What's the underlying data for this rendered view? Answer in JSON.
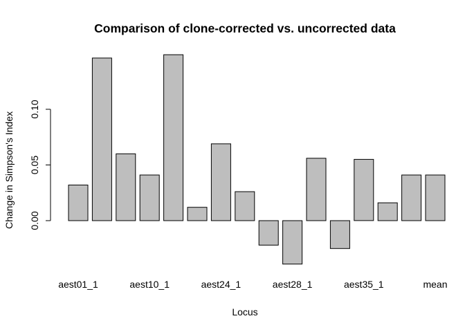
{
  "chart_data": {
    "type": "bar",
    "title": "Comparison of clone-corrected vs. uncorrected data",
    "xlabel": "Locus",
    "ylabel": "Change in Simpson's Index",
    "ylim": [
      -0.045,
      0.155
    ],
    "yticks": [
      "0.00",
      "0.05",
      "0.10"
    ],
    "ytick_values": [
      0.0,
      0.05,
      0.1
    ],
    "visible_xtick_labels": [
      "aest01_1",
      "aest10_1",
      "aest24_1",
      "aest28_1",
      "aest35_1",
      "mean"
    ],
    "visible_xtick_bar_index": [
      0,
      3,
      6,
      9,
      12,
      15
    ],
    "values": [
      0.032,
      0.146,
      0.06,
      0.041,
      0.149,
      0.012,
      0.069,
      0.026,
      -0.022,
      -0.039,
      0.056,
      -0.025,
      0.055,
      0.016,
      0.041,
      0.041
    ],
    "bar_color": "#bebebe",
    "grid": false,
    "legend": "none"
  }
}
